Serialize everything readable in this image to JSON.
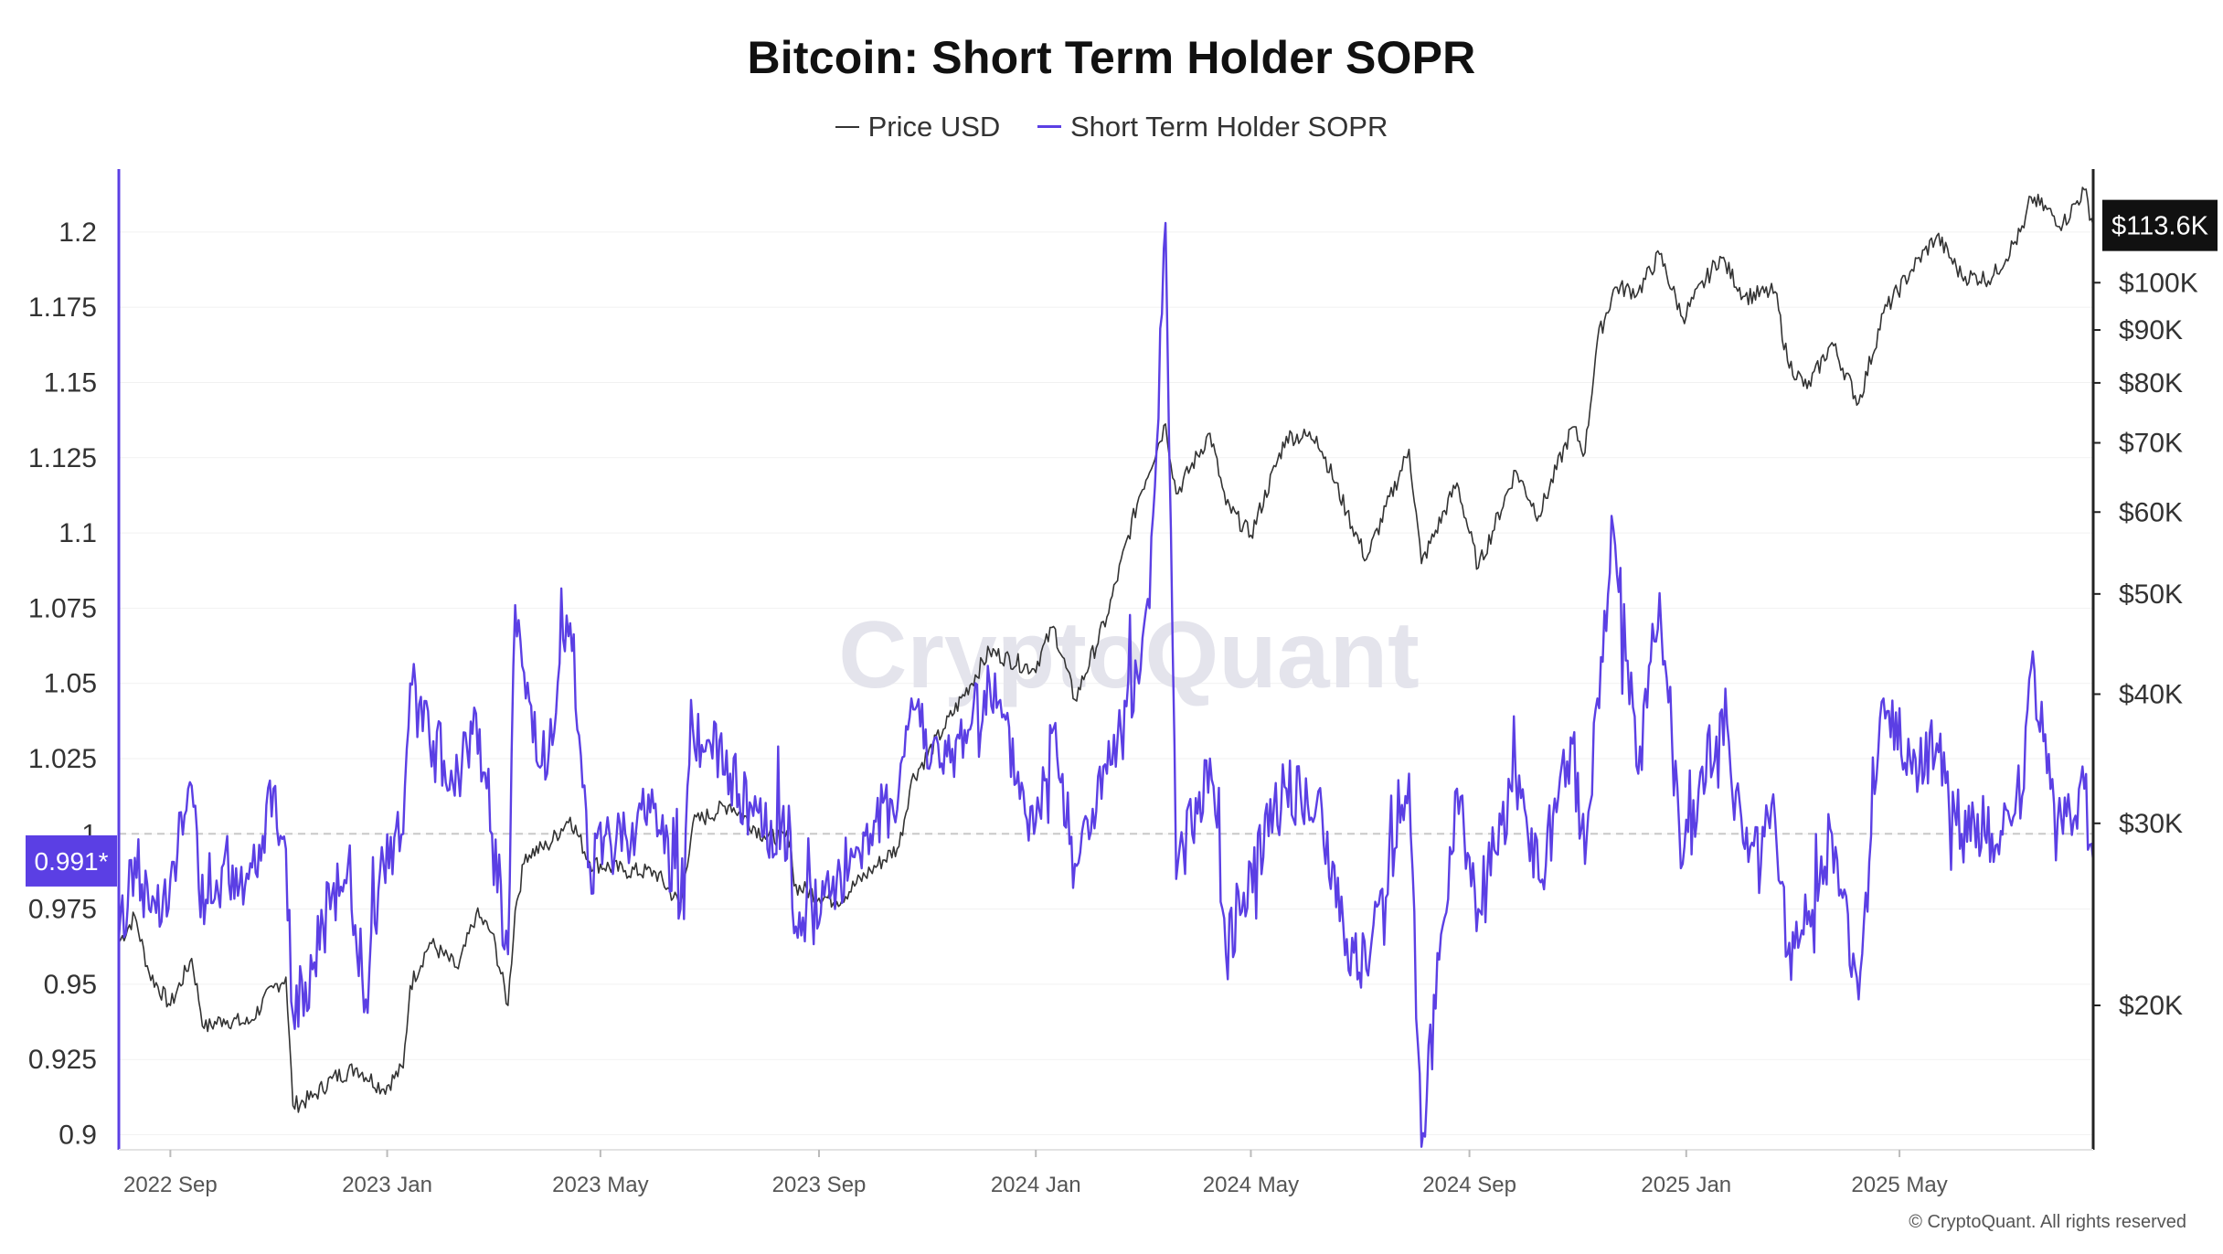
{
  "chart_data": {
    "type": "line",
    "title": "Bitcoin: Short Term Holder SOPR",
    "watermark": "CryptoQuant",
    "copyright": "© CryptoQuant. All rights reserved",
    "left_axis": {
      "ylim": [
        0.895,
        1.22
      ],
      "ticks": [
        "1.2",
        "1.175",
        "1.15",
        "1.125",
        "1.1",
        "1.075",
        "1.05",
        "1.025",
        "1",
        "0.975",
        "0.95",
        "0.925",
        "0.9"
      ],
      "current_label": "0.991*",
      "current_value": 0.991,
      "reference_line": 1.0
    },
    "right_axis": {
      "scale": "log",
      "ylim": [
        14500,
        128000
      ],
      "ticks": [
        {
          "label": "$100K",
          "value": 100000
        },
        {
          "label": "$90K",
          "value": 90000
        },
        {
          "label": "$80K",
          "value": 80000
        },
        {
          "label": "$70K",
          "value": 70000
        },
        {
          "label": "$60K",
          "value": 60000
        },
        {
          "label": "$50K",
          "value": 50000
        },
        {
          "label": "$40K",
          "value": 40000
        },
        {
          "label": "$30K",
          "value": 30000
        },
        {
          "label": "$20K",
          "value": 20000
        }
      ],
      "current_label": "$113.6K",
      "current_value": 113600
    },
    "x_axis": {
      "range": [
        "2022-08-03",
        "2025-08-18"
      ],
      "ticks": [
        {
          "label": "2022 Sep",
          "date": "2022-09-01"
        },
        {
          "label": "2023 Jan",
          "date": "2023-01-01"
        },
        {
          "label": "2023 May",
          "date": "2023-05-01"
        },
        {
          "label": "2023 Sep",
          "date": "2023-09-01"
        },
        {
          "label": "2024 Jan",
          "date": "2024-01-01"
        },
        {
          "label": "2024 May",
          "date": "2024-05-01"
        },
        {
          "label": "2024 Sep",
          "date": "2024-09-01"
        },
        {
          "label": "2025 Jan",
          "date": "2025-01-01"
        },
        {
          "label": "2025 May",
          "date": "2025-05-01"
        }
      ]
    },
    "grid": true,
    "legend_position": "top-center",
    "series": [
      {
        "name": "Price USD",
        "color": "#333333",
        "axis": "right",
        "points": [
          [
            "2022-08-03",
            23000
          ],
          [
            "2022-08-12",
            24400
          ],
          [
            "2022-08-20",
            21500
          ],
          [
            "2022-09-01",
            20000
          ],
          [
            "2022-09-13",
            22200
          ],
          [
            "2022-09-20",
            19000
          ],
          [
            "2022-10-01",
            19400
          ],
          [
            "2022-10-15",
            19200
          ],
          [
            "2022-10-29",
            20800
          ],
          [
            "2022-11-05",
            21300
          ],
          [
            "2022-11-09",
            16000
          ],
          [
            "2022-11-20",
            16300
          ],
          [
            "2022-12-01",
            17000
          ],
          [
            "2022-12-15",
            17400
          ],
          [
            "2022-12-30",
            16600
          ],
          [
            "2023-01-10",
            17400
          ],
          [
            "2023-01-14",
            20900
          ],
          [
            "2023-01-25",
            23000
          ],
          [
            "2023-02-10",
            21700
          ],
          [
            "2023-02-20",
            24500
          ],
          [
            "2023-03-01",
            23500
          ],
          [
            "2023-03-10",
            20000
          ],
          [
            "2023-03-14",
            24700
          ],
          [
            "2023-03-20",
            28000
          ],
          [
            "2023-04-01",
            28500
          ],
          [
            "2023-04-14",
            30400
          ],
          [
            "2023-04-25",
            27500
          ],
          [
            "2023-05-15",
            27000
          ],
          [
            "2023-06-01",
            26900
          ],
          [
            "2023-06-15",
            25000
          ],
          [
            "2023-06-22",
            30000
          ],
          [
            "2023-07-13",
            31300
          ],
          [
            "2023-08-01",
            29200
          ],
          [
            "2023-08-16",
            29000
          ],
          [
            "2023-08-18",
            26100
          ],
          [
            "2023-09-11",
            25200
          ],
          [
            "2023-09-30",
            27000
          ],
          [
            "2023-10-16",
            28500
          ],
          [
            "2023-10-23",
            33000
          ],
          [
            "2023-11-10",
            37000
          ],
          [
            "2023-12-06",
            44000
          ],
          [
            "2023-12-31",
            42300
          ],
          [
            "2024-01-11",
            46500
          ],
          [
            "2024-01-23",
            39500
          ],
          [
            "2024-02-10",
            47500
          ],
          [
            "2024-02-28",
            62000
          ],
          [
            "2024-03-14",
            73000
          ],
          [
            "2024-03-20",
            62500
          ],
          [
            "2024-04-08",
            71500
          ],
          [
            "2024-04-17",
            61000
          ],
          [
            "2024-05-01",
            57000
          ],
          [
            "2024-05-21",
            71000
          ],
          [
            "2024-06-07",
            71000
          ],
          [
            "2024-06-24",
            60000
          ],
          [
            "2024-07-05",
            54000
          ],
          [
            "2024-07-29",
            69000
          ],
          [
            "2024-08-05",
            53500
          ],
          [
            "2024-08-25",
            64000
          ],
          [
            "2024-09-06",
            53000
          ],
          [
            "2024-09-27",
            65800
          ],
          [
            "2024-10-10",
            59500
          ],
          [
            "2024-10-29",
            72500
          ],
          [
            "2024-11-05",
            68500
          ],
          [
            "2024-11-12",
            88000
          ],
          [
            "2024-11-22",
            99000
          ],
          [
            "2024-12-05",
            98000
          ],
          [
            "2024-12-17",
            106500
          ],
          [
            "2024-12-30",
            92500
          ],
          [
            "2025-01-20",
            106000
          ],
          [
            "2025-02-03",
            97000
          ],
          [
            "2025-02-20",
            98000
          ],
          [
            "2025-02-27",
            84000
          ],
          [
            "2025-03-10",
            79000
          ],
          [
            "2025-03-24",
            87500
          ],
          [
            "2025-04-08",
            76500
          ],
          [
            "2025-04-22",
            93500
          ],
          [
            "2025-05-08",
            103000
          ],
          [
            "2025-05-22",
            111000
          ],
          [
            "2025-06-05",
            101500
          ],
          [
            "2025-06-22",
            101000
          ],
          [
            "2025-07-10",
            113000
          ],
          [
            "2025-07-14",
            121000
          ],
          [
            "2025-08-01",
            114000
          ],
          [
            "2025-08-13",
            123000
          ],
          [
            "2025-08-18",
            113600
          ]
        ]
      },
      {
        "name": "Short Term Holder SOPR",
        "color": "#5b3fe4",
        "axis": "left",
        "points": [
          [
            "2022-08-03",
            0.965
          ],
          [
            "2022-08-12",
            0.992
          ],
          [
            "2022-08-20",
            0.975
          ],
          [
            "2022-09-01",
            0.985
          ],
          [
            "2022-09-13",
            1.016
          ],
          [
            "2022-09-20",
            0.97
          ],
          [
            "2022-10-01",
            0.99
          ],
          [
            "2022-10-15",
            0.985
          ],
          [
            "2022-10-29",
            1.015
          ],
          [
            "2022-11-05",
            0.995
          ],
          [
            "2022-11-09",
            0.94
          ],
          [
            "2022-11-20",
            0.955
          ],
          [
            "2022-12-01",
            0.98
          ],
          [
            "2022-12-10",
            0.99
          ],
          [
            "2022-12-20",
            0.945
          ],
          [
            "2022-12-30",
            0.99
          ],
          [
            "2023-01-10",
            1.0
          ],
          [
            "2023-01-14",
            1.05
          ],
          [
            "2023-01-25",
            1.03
          ],
          [
            "2023-02-10",
            1.02
          ],
          [
            "2023-02-20",
            1.04
          ],
          [
            "2023-03-01",
            1.0
          ],
          [
            "2023-03-10",
            0.96
          ],
          [
            "2023-03-14",
            1.076
          ],
          [
            "2023-03-20",
            1.045
          ],
          [
            "2023-04-01",
            1.02
          ],
          [
            "2023-04-14",
            1.07
          ],
          [
            "2023-04-25",
            0.99
          ],
          [
            "2023-05-15",
            1.0
          ],
          [
            "2023-06-01",
            1.01
          ],
          [
            "2023-06-15",
            0.975
          ],
          [
            "2023-06-22",
            1.035
          ],
          [
            "2023-07-13",
            1.02
          ],
          [
            "2023-08-01",
            1.0
          ],
          [
            "2023-08-16",
            1.0
          ],
          [
            "2023-08-18",
            0.967
          ],
          [
            "2023-09-11",
            0.985
          ],
          [
            "2023-09-30",
            1.0
          ],
          [
            "2023-10-16",
            1.015
          ],
          [
            "2023-10-23",
            1.045
          ],
          [
            "2023-11-10",
            1.02
          ],
          [
            "2023-12-06",
            1.05
          ],
          [
            "2023-12-31",
            1.0
          ],
          [
            "2024-01-11",
            1.035
          ],
          [
            "2024-01-23",
            0.99
          ],
          [
            "2024-02-10",
            1.02
          ],
          [
            "2024-02-28",
            1.05
          ],
          [
            "2024-03-05",
            1.075
          ],
          [
            "2024-03-14",
            1.203
          ],
          [
            "2024-03-20",
            0.985
          ],
          [
            "2024-04-08",
            1.025
          ],
          [
            "2024-04-17",
            0.96
          ],
          [
            "2024-05-01",
            0.99
          ],
          [
            "2024-05-21",
            1.015
          ],
          [
            "2024-06-07",
            1.01
          ],
          [
            "2024-06-24",
            0.965
          ],
          [
            "2024-07-05",
            0.955
          ],
          [
            "2024-07-29",
            1.02
          ],
          [
            "2024-08-05",
            0.896
          ],
          [
            "2024-08-25",
            1.015
          ],
          [
            "2024-09-06",
            0.975
          ],
          [
            "2024-09-27",
            1.02
          ],
          [
            "2024-10-10",
            0.985
          ],
          [
            "2024-10-29",
            1.03
          ],
          [
            "2024-11-05",
            0.99
          ],
          [
            "2024-11-12",
            1.045
          ],
          [
            "2024-11-22",
            1.096
          ],
          [
            "2024-12-05",
            1.02
          ],
          [
            "2024-12-17",
            1.08
          ],
          [
            "2024-12-30",
            0.99
          ],
          [
            "2025-01-20",
            1.04
          ],
          [
            "2025-02-03",
            0.995
          ],
          [
            "2025-02-20",
            1.005
          ],
          [
            "2025-02-27",
            0.96
          ],
          [
            "2025-03-10",
            0.97
          ],
          [
            "2025-03-24",
            1.0
          ],
          [
            "2025-04-08",
            0.945
          ],
          [
            "2025-04-22",
            1.045
          ],
          [
            "2025-05-08",
            1.02
          ],
          [
            "2025-05-22",
            1.03
          ],
          [
            "2025-06-05",
            1.0
          ],
          [
            "2025-06-22",
            1.0
          ],
          [
            "2025-07-10",
            1.015
          ],
          [
            "2025-07-14",
            1.055
          ],
          [
            "2025-08-01",
            1.0
          ],
          [
            "2025-08-13",
            1.015
          ],
          [
            "2025-08-18",
            0.991
          ]
        ]
      }
    ]
  }
}
